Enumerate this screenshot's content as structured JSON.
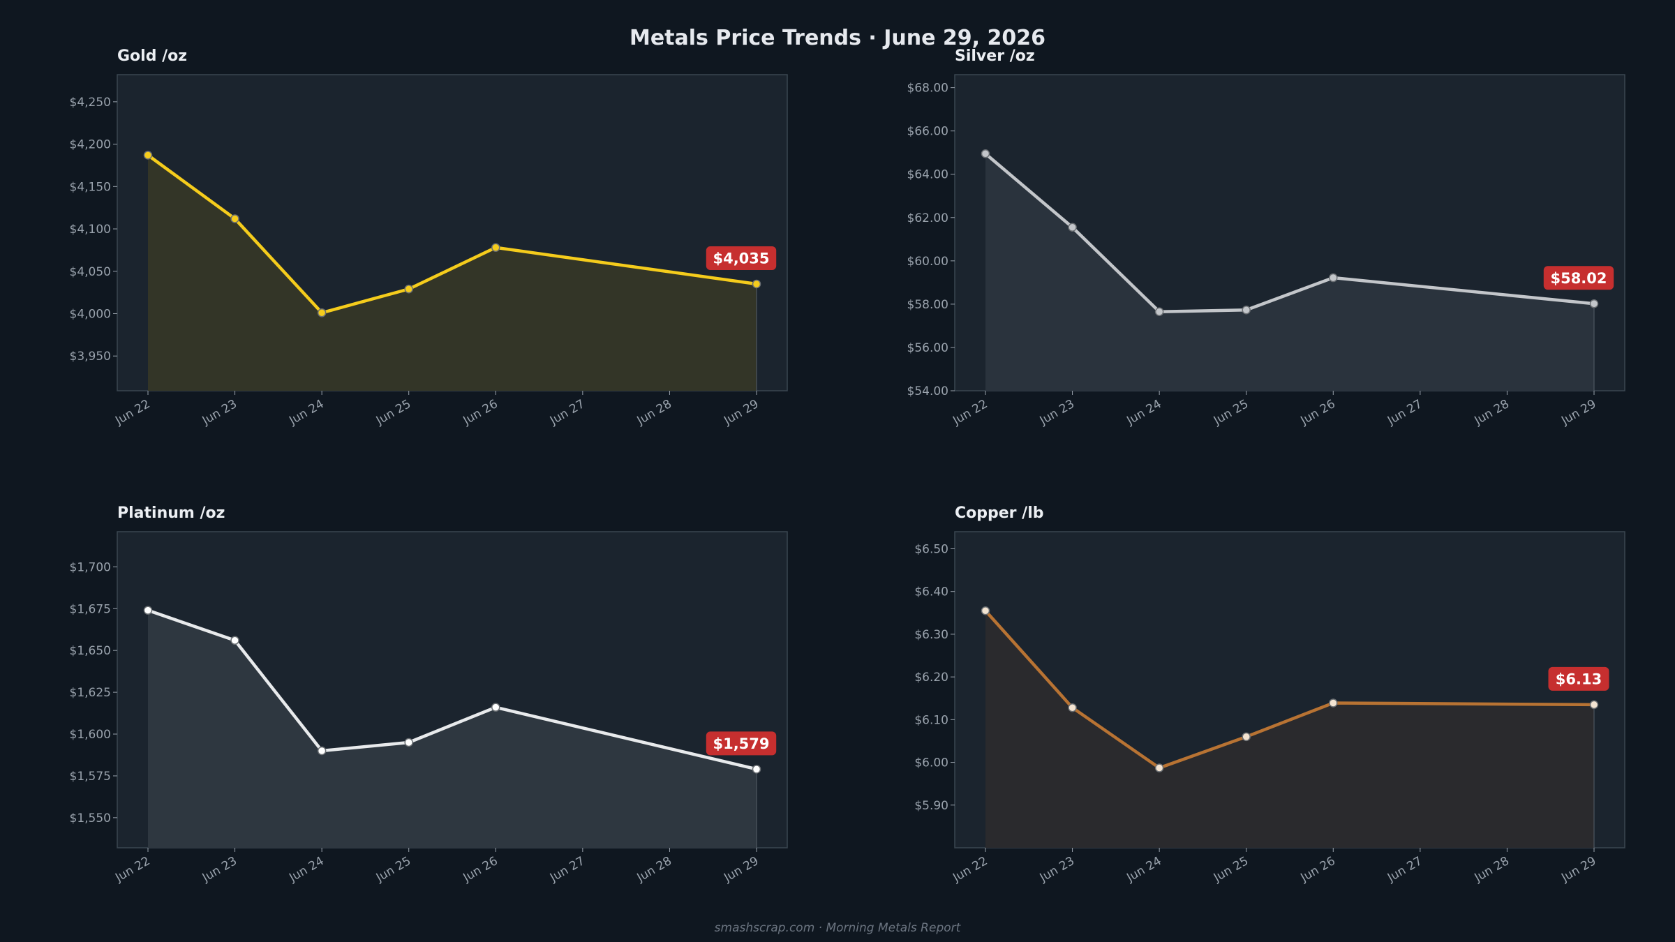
{
  "title": "Metals Price Trends  ·  June 29, 2026",
  "footer": "smashscrap.com  ·  Morning Metals Report",
  "colors": {
    "background": "#0f1720",
    "panel": "#1b242e",
    "panel_border": "#3a4650",
    "badge": "#c62f2f"
  },
  "chart_data": [
    {
      "type": "area",
      "title": "Gold  /oz",
      "x": [
        "Jun 22",
        "Jun 23",
        "Jun 24",
        "Jun 25",
        "Jun 26",
        "Jun 27",
        "Jun 28",
        "Jun 29"
      ],
      "series": [
        {
          "x": [
            "Jun 22",
            "Jun 23",
            "Jun 24",
            "Jun 25",
            "Jun 26",
            "Jun 29"
          ],
          "values": [
            4187,
            4112,
            4001,
            4029,
            4078,
            4035
          ]
        }
      ],
      "yticks": [
        3950,
        4000,
        4050,
        4100,
        4150,
        4200,
        4250
      ],
      "ytick_labels": [
        "$3,950",
        "$4,000",
        "$4,050",
        "$4,100",
        "$4,150",
        "$4,200",
        "$4,250"
      ],
      "ylim": [
        3909,
        4282
      ],
      "latest_label": "$4,035",
      "line_color": "#f5cc1c",
      "fill_color": "#333527",
      "marker_face": "#f5cc1c",
      "grid": false
    },
    {
      "type": "area",
      "title": "Silver  /oz",
      "x": [
        "Jun 22",
        "Jun 23",
        "Jun 24",
        "Jun 25",
        "Jun 26",
        "Jun 27",
        "Jun 28",
        "Jun 29"
      ],
      "series": [
        {
          "x": [
            "Jun 22",
            "Jun 23",
            "Jun 24",
            "Jun 25",
            "Jun 26",
            "Jun 29"
          ],
          "values": [
            64.95,
            61.55,
            57.65,
            57.73,
            59.22,
            58.02
          ]
        }
      ],
      "yticks": [
        54,
        56,
        58,
        60,
        62,
        64,
        66,
        68
      ],
      "ytick_labels": [
        "$54.00",
        "$56.00",
        "$58.00",
        "$60.00",
        "$62.00",
        "$64.00",
        "$66.00",
        "$68.00"
      ],
      "ylim": [
        54,
        68.6
      ],
      "latest_label": "$58.02",
      "line_color": "#c3c6ca",
      "fill_color": "#2a333d",
      "marker_face": "#c3c6ca",
      "grid": false
    },
    {
      "type": "area",
      "title": "Platinum  /oz",
      "x": [
        "Jun 22",
        "Jun 23",
        "Jun 24",
        "Jun 25",
        "Jun 26",
        "Jun 27",
        "Jun 28",
        "Jun 29"
      ],
      "series": [
        {
          "x": [
            "Jun 22",
            "Jun 23",
            "Jun 24",
            "Jun 25",
            "Jun 26",
            "Jun 29"
          ],
          "values": [
            1674,
            1656,
            1590,
            1595,
            1616,
            1579
          ]
        }
      ],
      "yticks": [
        1550,
        1575,
        1600,
        1625,
        1650,
        1675,
        1700
      ],
      "ytick_labels": [
        "$1,550",
        "$1,575",
        "$1,600",
        "$1,625",
        "$1,650",
        "$1,675",
        "$1,700"
      ],
      "ylim": [
        1532,
        1721
      ],
      "latest_label": "$1,579",
      "line_color": "#e8eaec",
      "fill_color": "#2e3740",
      "marker_face": "#ffffff",
      "grid": false
    },
    {
      "type": "area",
      "title": "Copper  /lb",
      "x": [
        "Jun 22",
        "Jun 23",
        "Jun 24",
        "Jun 25",
        "Jun 26",
        "Jun 27",
        "Jun 28",
        "Jun 29"
      ],
      "series": [
        {
          "x": [
            "Jun 22",
            "Jun 23",
            "Jun 24",
            "Jun 25",
            "Jun 26",
            "Jun 29"
          ],
          "values": [
            6.355,
            6.128,
            5.987,
            6.06,
            6.139,
            6.135
          ]
        }
      ],
      "yticks": [
        5.9,
        6.0,
        6.1,
        6.2,
        6.3,
        6.4,
        6.5
      ],
      "ytick_labels": [
        "$5.90",
        "$6.00",
        "$6.10",
        "$6.20",
        "$6.30",
        "$6.40",
        "$6.50"
      ],
      "ylim": [
        5.8,
        6.54
      ],
      "latest_label": "$6.13",
      "line_color": "#b87333",
      "fill_color": "#2a2a2d",
      "marker_face": "#f3e4d2",
      "grid": false
    }
  ]
}
